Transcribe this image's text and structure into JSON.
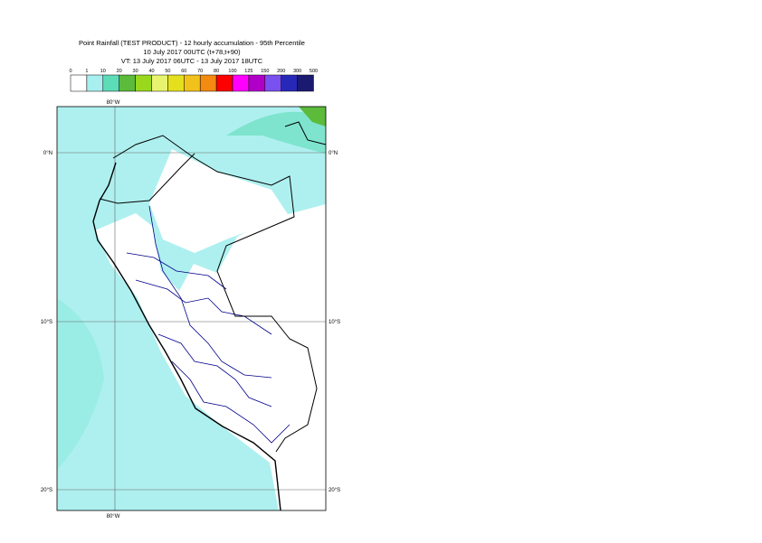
{
  "header": {
    "lines": [
      "Point Rainfall (TEST PRODUCT) - 12 hourly accumulation - 95th Percentile",
      "10 July 2017 00UTC (t+78,t+90)",
      "VT: 13 July 2017 06UTC - 13 July 2017 18UTC"
    ]
  },
  "legend": {
    "labels": [
      "0",
      "1",
      "10",
      "20",
      "30",
      "40",
      "50",
      "60",
      "70",
      "80",
      "100",
      "125",
      "150",
      "200",
      "300",
      "500"
    ],
    "colors": [
      "#ffffff",
      "#a8f0ef",
      "#5ddcb8",
      "#5cbb3a",
      "#99d81c",
      "#e8f470",
      "#e4e01e",
      "#f2c21c",
      "#f48a10",
      "#ff0000",
      "#ff00ff",
      "#b000c8",
      "#7a50f0",
      "#2828b8",
      "#1a1a70"
    ]
  },
  "map": {
    "grid_labels": {
      "top": "80°W",
      "bottom": "80°W",
      "left": [
        "0°N",
        "10°S",
        "20°S"
      ],
      "right": [
        "0°N",
        "10°S",
        "20°S"
      ]
    }
  }
}
